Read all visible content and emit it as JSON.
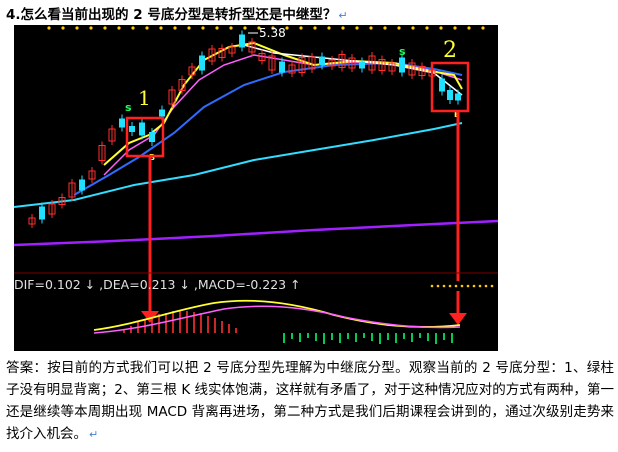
{
  "doc": {
    "title": "4.怎么看当前出现的 2 号底分型是转折型还是中继型？",
    "para_mark": "↵",
    "answer": "答案：按目前的方式我们可以把 2 号底分型先理解为中继底分型。观察当前的 2 号底分型：1、绿柱子没有明显背离；2、第三根 K 线实体饱满，这样就有矛盾了，对于这种情况应对的方式有两种，第一还是继续等本周期出现 MACD 背离再进场，第二种方式是我们后期课程会讲到的，通过次级别走势来找介入机会。"
  },
  "chart": {
    "price_label": "5.38",
    "marker_1": "1",
    "marker_2": "2",
    "s_label": "s",
    "b_label": "B",
    "indicator_text": "DIF=0.102 ↓ ,DEA=0.213 ↓ ,MACD=-0.223 ↑",
    "colors": {
      "background": "#000000",
      "box": "#ff2020",
      "arrow": "#ff2020",
      "candle_up": "#ff3030",
      "candle_down": "#20e0ff",
      "line_white": "#ffffff",
      "line_yellow": "#ffff33",
      "line_pink": "#ff60ff",
      "line_blue": "#2f6bff",
      "line_cyan": "#33ddff",
      "line_purple": "#a020ff",
      "macd_red": "#ff3030",
      "macd_green": "#00ff66"
    }
  }
}
